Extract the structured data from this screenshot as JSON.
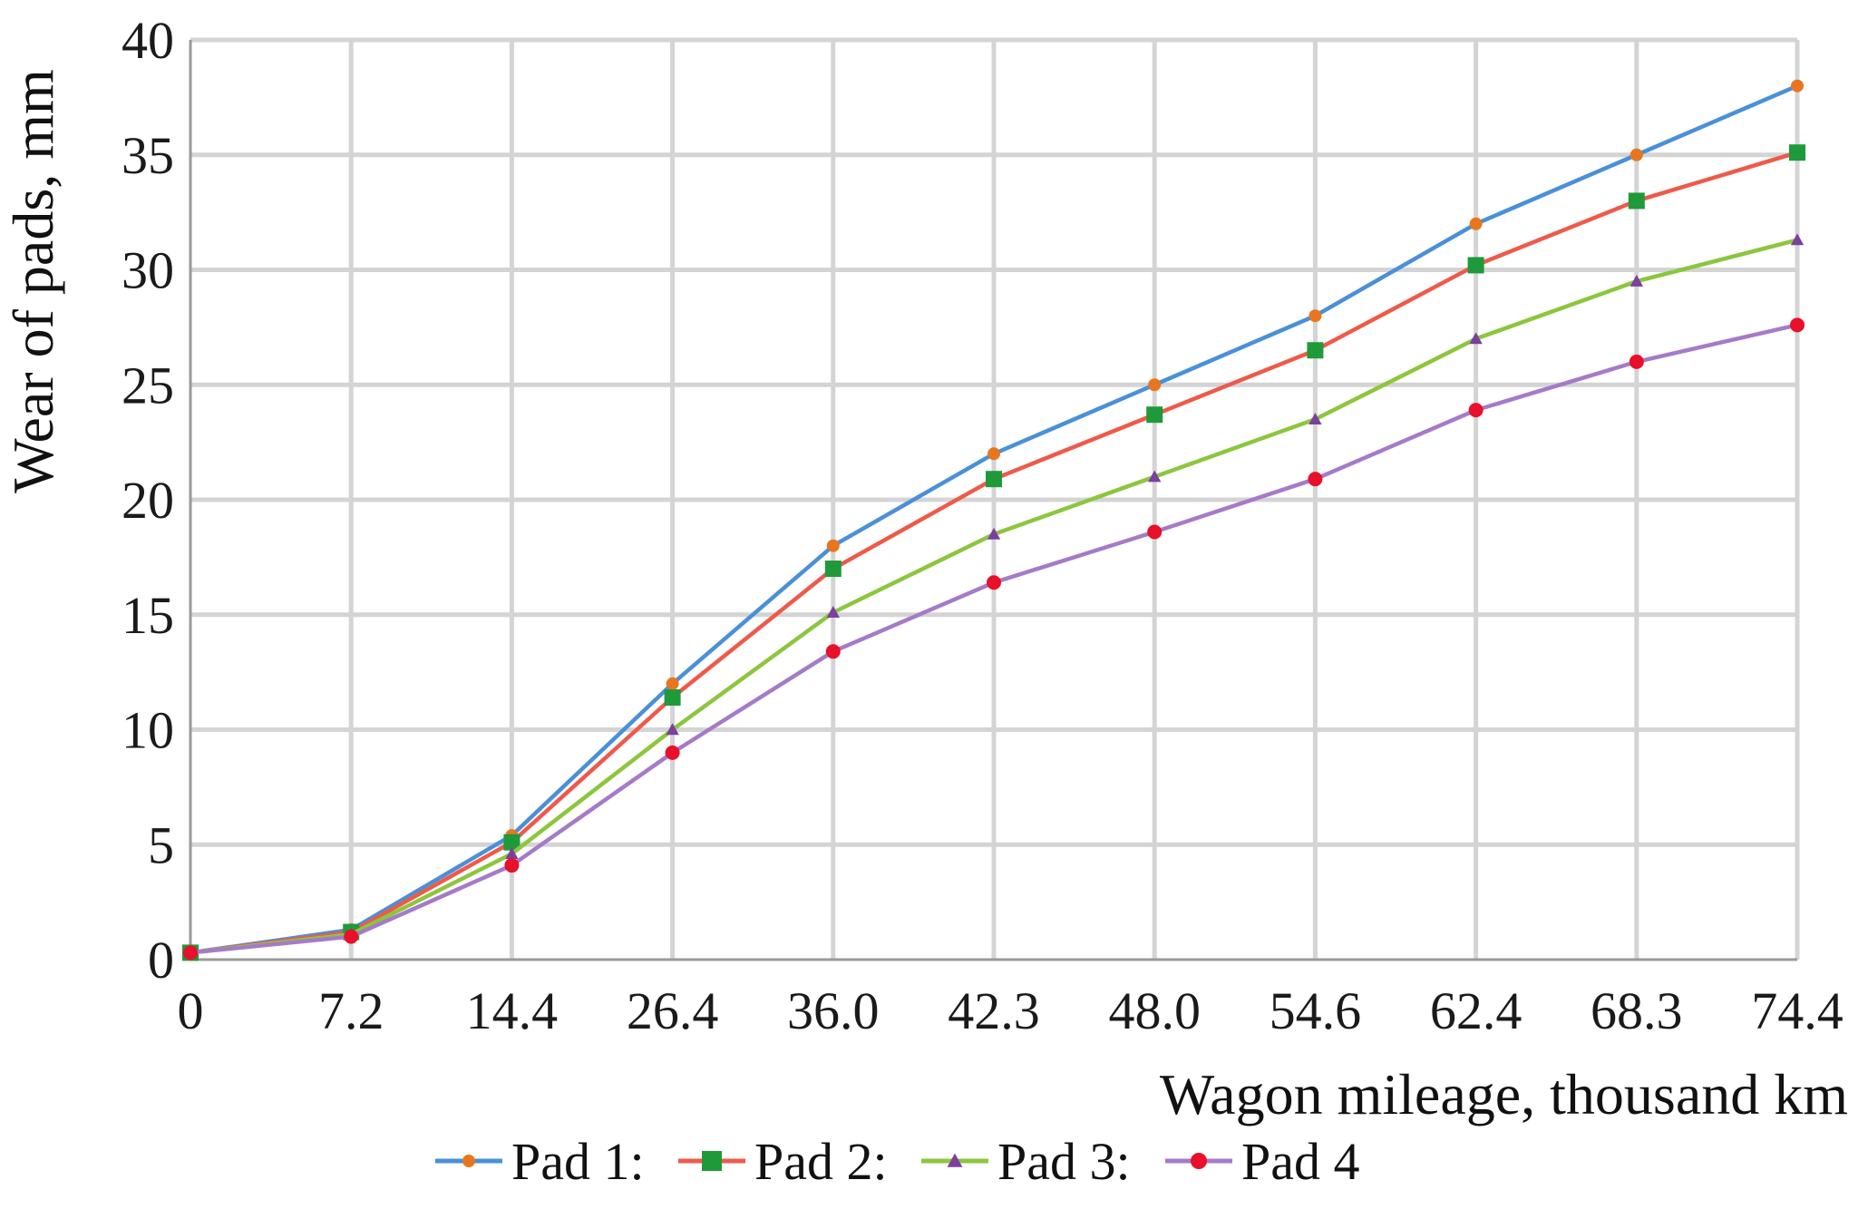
{
  "chart_data": {
    "type": "line",
    "xlabel": "Wagon mileage, thousand km",
    "ylabel": "Wear of pads, mm",
    "categories": [
      "0",
      "7.2",
      "14.4",
      "26.4",
      "36.0",
      "42.3",
      "48.0",
      "54.6",
      "62.4",
      "68.3",
      "74.4"
    ],
    "ylim": [
      0,
      40
    ],
    "yticks": [
      "0",
      "5",
      "10",
      "15",
      "20",
      "25",
      "30",
      "35",
      "40"
    ],
    "grid": true,
    "legend_position": "bottom",
    "series": [
      {
        "name": "Pad 1",
        "legend_label": "Pad 1:",
        "line_color": "#4a90d9",
        "marker_color": "#e8761f",
        "marker": "dot",
        "values": [
          0.3,
          1.3,
          5.4,
          12.0,
          18.0,
          22.0,
          25.0,
          28.0,
          32.0,
          35.0,
          38.0
        ]
      },
      {
        "name": "Pad 2",
        "legend_label": "Pad 2:",
        "line_color": "#ee5a4a",
        "marker_color": "#1f9a3a",
        "marker": "square",
        "values": [
          0.3,
          1.2,
          5.1,
          11.4,
          17.0,
          20.9,
          23.7,
          26.5,
          30.2,
          33.0,
          35.1
        ]
      },
      {
        "name": "Pad 3",
        "legend_label": "Pad 3:",
        "line_color": "#8cc63e",
        "marker_color": "#7c3f9e",
        "marker": "triangle",
        "values": [
          0.3,
          1.1,
          4.6,
          10.0,
          15.1,
          18.5,
          21.0,
          23.5,
          27.0,
          29.5,
          31.3
        ]
      },
      {
        "name": "Pad 4",
        "legend_label": "Pad 4",
        "line_color": "#a57bc8",
        "marker_color": "#e8102a",
        "marker": "dot",
        "values": [
          0.3,
          1.0,
          4.1,
          9.0,
          13.4,
          16.4,
          18.6,
          20.9,
          23.9,
          26.0,
          27.6
        ]
      }
    ]
  }
}
